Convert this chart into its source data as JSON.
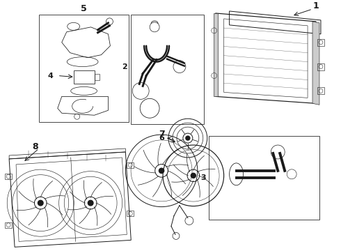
{
  "background_color": "#ffffff",
  "line_color": "#1a1a1a",
  "fig_w": 4.9,
  "fig_h": 3.6,
  "dpi": 100
}
